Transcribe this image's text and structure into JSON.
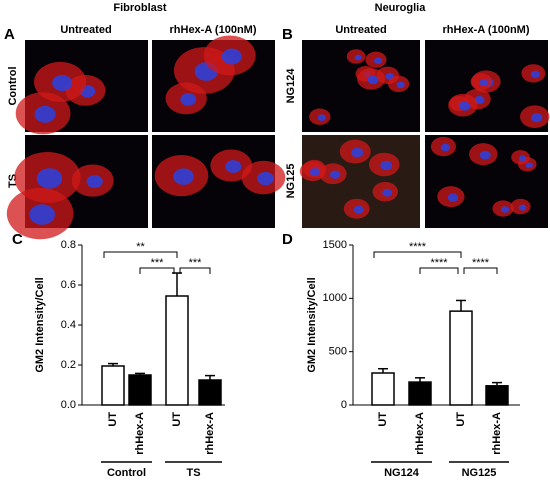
{
  "figure": {
    "panels": [
      "A",
      "B"
    ],
    "fibroblast": {
      "title": "Fibroblast",
      "columns": [
        "Untreated",
        "rhHex-A (100nM)"
      ],
      "rows": [
        "Control",
        "TS"
      ]
    },
    "neuroglia": {
      "title": "Neuroglia",
      "columns": [
        "Untreated",
        "rhHex-A (100nM)"
      ],
      "rows": [
        "NG124",
        "NG125"
      ]
    }
  },
  "chart_data": [
    {
      "type": "bar",
      "panel": "C",
      "ylabel": "GM2 Intensity/Cell",
      "categories": [
        "UT",
        "rhHex-A",
        "UT",
        "rhHex-A"
      ],
      "groups": [
        "Control",
        "TS"
      ],
      "values": [
        0.195,
        0.15,
        0.545,
        0.125
      ],
      "errors": [
        0.012,
        0.008,
        0.115,
        0.022
      ],
      "colors": [
        "#ffffff",
        "#000000",
        "#ffffff",
        "#000000"
      ],
      "ylim": [
        0,
        0.8
      ],
      "yticks": [
        {
          "value": 0,
          "label": "0.0"
        },
        0.2,
        0.4,
        0.6,
        0.8
      ],
      "annotations": [
        "**",
        "***",
        "***"
      ]
    },
    {
      "type": "bar",
      "panel": "D",
      "ylabel": "GM2 Intensity/Cell",
      "categories": [
        "UT",
        "rhHex-A",
        "UT",
        "rhHex-A"
      ],
      "groups": [
        "NG124",
        "NG125"
      ],
      "values": [
        300,
        215,
        880,
        180
      ],
      "errors": [
        40,
        40,
        100,
        30
      ],
      "colors": [
        "#ffffff",
        "#000000",
        "#ffffff",
        "#000000"
      ],
      "ylim": [
        0,
        1500
      ],
      "yticks": [
        0,
        500,
        1000,
        1500
      ],
      "annotations": [
        "****",
        "****",
        "****"
      ]
    }
  ]
}
